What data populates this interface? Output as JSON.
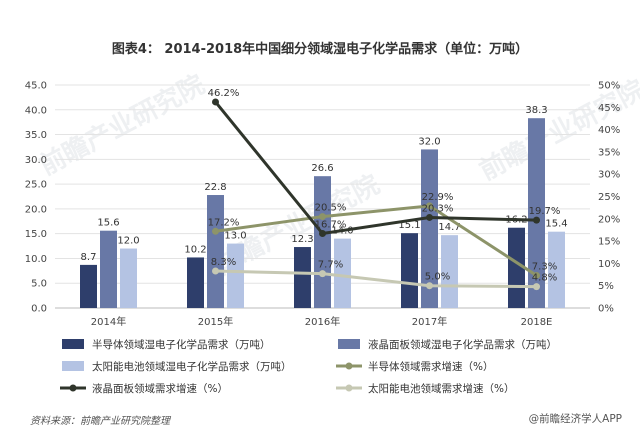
{
  "chart_data": {
    "type": "bar",
    "title": "图表4：  2014-2018年中国细分领域湿电子化学品需求（单位：万吨）",
    "categories": [
      "2014年",
      "2015年",
      "2016年",
      "2017年",
      "2018E"
    ],
    "ylim_left": [
      0,
      45
    ],
    "yticks_left": [
      "0.0",
      "5.0",
      "10.0",
      "15.0",
      "20.0",
      "25.0",
      "30.0",
      "35.0",
      "40.0",
      "45.0"
    ],
    "ylim_right": [
      0,
      50
    ],
    "yticks_right": [
      "0%",
      "5%",
      "10%",
      "15%",
      "20%",
      "25%",
      "30%",
      "35%",
      "40%",
      "45%",
      "50%"
    ],
    "grid": true,
    "legend_placement": "bottom",
    "bar_series": [
      {
        "name": "半导体领域湿电子化学品需求（万吨）",
        "values": [
          8.7,
          10.2,
          12.3,
          15.1,
          16.2
        ],
        "labels": [
          "8.7",
          "10.2",
          "12.3",
          "15.1",
          "16.2"
        ],
        "color": "#2e3e6b"
      },
      {
        "name": "液晶面板领域湿电子化学品需求（万吨）",
        "values": [
          15.6,
          22.8,
          26.6,
          32.0,
          38.3
        ],
        "labels": [
          "15.6",
          "22.8",
          "26.6",
          "32.0",
          "38.3"
        ],
        "color": "#6878a6"
      },
      {
        "name": "太阳能电池领域湿电子化学品需求（万吨）",
        "values": [
          12.0,
          13.0,
          14.0,
          14.7,
          15.4
        ],
        "labels": [
          "12.0",
          "13.0",
          "14.0",
          "14.7",
          "15.4"
        ],
        "color": "#b4c3e3"
      }
    ],
    "line_series": [
      {
        "name": "半导体领域需求增速（%）",
        "values": [
          null,
          17.2,
          20.5,
          22.9,
          7.3
        ],
        "labels": [
          "",
          "17.2%",
          "20.5%",
          "22.9%",
          "7.3%"
        ],
        "color": "#8d9469"
      },
      {
        "name": "液晶面板领域需求增速（%）",
        "values": [
          null,
          46.2,
          16.7,
          20.3,
          19.7
        ],
        "labels": [
          "",
          "46.2%",
          "16.7%",
          "20.3%",
          "19.7%"
        ],
        "color": "#2f352b"
      },
      {
        "name": "太阳能电池领域需求增速（%）",
        "values": [
          null,
          8.3,
          7.7,
          5.0,
          4.8
        ],
        "labels": [
          "",
          "8.3%",
          "7.7%",
          "5.0%",
          "4.8%"
        ],
        "color": "#c6c8b3"
      }
    ]
  },
  "footer": {
    "source": "资料来源：前瞻产业研究院整理",
    "brand": "@前瞻经济学人APP"
  },
  "watermark": "前瞻产业研究院"
}
